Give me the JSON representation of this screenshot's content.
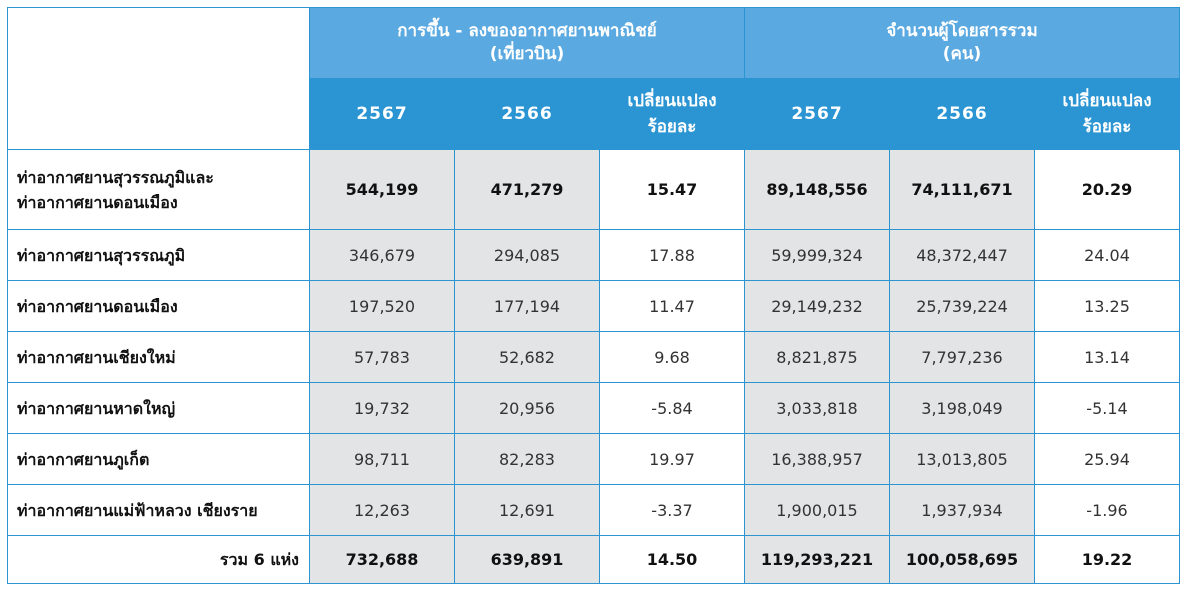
{
  "header": {
    "flights_title": "การขึ้น - ลงของอากาศยานพาณิชย์",
    "flights_unit": "(เที่ยวบิน)",
    "passengers_title": "จำนวนผู้โดยสารรวม",
    "passengers_unit": "(คน)",
    "year_current": "2567",
    "year_previous": "2566",
    "change_line1": "เปลี่ยนแปลง",
    "change_line2": "ร้อยละ"
  },
  "rows": [
    {
      "name_line1": "ท่าอากาศยานสุวรรณภูมิและ",
      "name_line2": "ท่าอากาศยานดอนเมือง",
      "f2567": "544,199",
      "f2566": "471,279",
      "fchg": "15.47",
      "p2567": "89,148,556",
      "p2566": "74,111,671",
      "pchg": "20.29"
    },
    {
      "name_line1": "ท่าอากาศยานสุวรรณภูมิ",
      "f2567": "346,679",
      "f2566": "294,085",
      "fchg": "17.88",
      "p2567": "59,999,324",
      "p2566": "48,372,447",
      "pchg": "24.04"
    },
    {
      "name_line1": "ท่าอากาศยานดอนเมือง",
      "f2567": "197,520",
      "f2566": "177,194",
      "fchg": "11.47",
      "p2567": "29,149,232",
      "p2566": "25,739,224",
      "pchg": "13.25"
    },
    {
      "name_line1": "ท่าอากาศยานเชียงใหม่",
      "f2567": "57,783",
      "f2566": "52,682",
      "fchg": "9.68",
      "p2567": "8,821,875",
      "p2566": "7,797,236",
      "pchg": "13.14"
    },
    {
      "name_line1": "ท่าอากาศยานหาดใหญ่",
      "f2567": "19,732",
      "f2566": "20,956",
      "fchg": "-5.84",
      "p2567": "3,033,818",
      "p2566": "3,198,049",
      "pchg": "-5.14"
    },
    {
      "name_line1": "ท่าอากาศยานภูเก็ต",
      "f2567": "98,711",
      "f2566": "82,283",
      "fchg": "19.97",
      "p2567": "16,388,957",
      "p2566": "13,013,805",
      "pchg": "25.94"
    },
    {
      "name_line1": "ท่าอากาศยานแม่ฟ้าหลวง เชียงราย",
      "f2567": "12,263",
      "f2566": "12,691",
      "fchg": "-3.37",
      "p2567": "1,900,015",
      "p2566": "1,937,934",
      "pchg": "-1.96"
    }
  ],
  "total": {
    "name": "รวม 6 แห่ง",
    "f2567": "732,688",
    "f2566": "639,891",
    "fchg": "14.50",
    "p2567": "119,293,221",
    "p2566": "100,058,695",
    "pchg": "19.22"
  },
  "colors": {
    "header_group": "#5aa9e0",
    "header_sub": "#2b95d3",
    "border": "#2b95d3",
    "shade": "#e3e4e6"
  }
}
